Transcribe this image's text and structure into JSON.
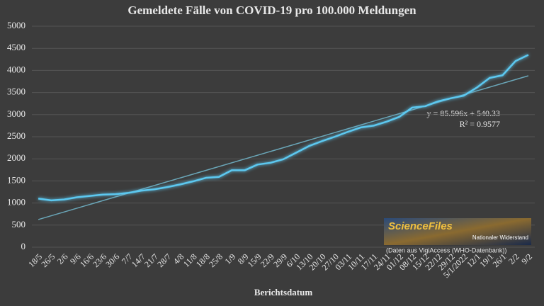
{
  "chart_data": {
    "type": "line",
    "title": "Gemeldete Fälle von COVID-19 pro 100.000 Meldungen",
    "x_label": "Berichtsdatum",
    "categories": [
      "18/5",
      "26/5",
      "2/6",
      "9/6",
      "16/6",
      "23/6",
      "30/6",
      "7/7",
      "14/7",
      "21/7",
      "28/7",
      "4/8",
      "11/8",
      "18/8",
      "25/8",
      "1/9",
      "8/9",
      "15/9",
      "22/9",
      "29/9",
      "6/10",
      "13/10",
      "20/10",
      "27/10",
      "03/11",
      "10/11",
      "17/11",
      "24/11",
      "01/12",
      "08/12",
      "15/12",
      "22/12",
      "29/12",
      "5/1/2022",
      "12/1",
      "19/1",
      "26/1",
      "2/2",
      "9/2"
    ],
    "series": [
      {
        "color": "#5cc8f0",
        "values": [
          1100,
          1060,
          1080,
          1130,
          1160,
          1190,
          1200,
          1230,
          1280,
          1310,
          1360,
          1420,
          1490,
          1570,
          1590,
          1740,
          1740,
          1870,
          1910,
          1990,
          2140,
          2290,
          2400,
          2500,
          2610,
          2710,
          2750,
          2840,
          2950,
          3160,
          3190,
          3300,
          3370,
          3430,
          3610,
          3830,
          3890,
          4210,
          4350
        ]
      }
    ],
    "trendline": {
      "slope": 85.596,
      "intercept": 540.33,
      "color": "#6aa6b8",
      "equation": "y = 85.596x + 540.33",
      "r_squared": "R² = 0.9577"
    },
    "ylim": [
      0,
      5000
    ],
    "yticks": [
      0,
      500,
      1000,
      1500,
      2000,
      2500,
      3000,
      3500,
      4000,
      4500,
      5000
    ],
    "grid": true,
    "logo": {
      "title": "ScienceFiles",
      "subtitle": "Nationaler Widerstand"
    },
    "source": "(Daten aus VigiAccess (WHO-Datenbank))"
  }
}
